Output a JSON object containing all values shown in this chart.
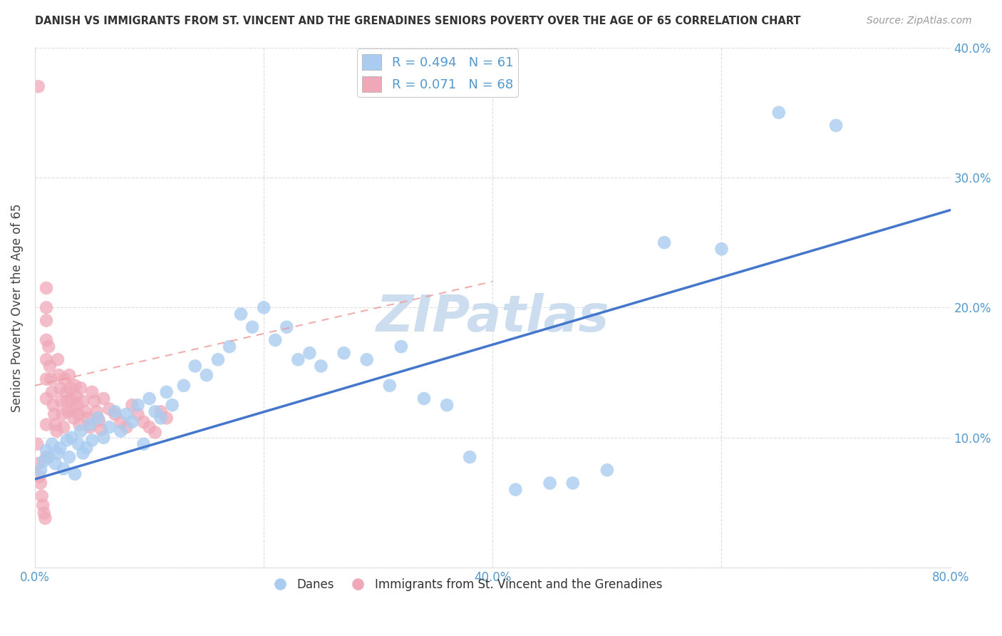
{
  "title": "DANISH VS IMMIGRANTS FROM ST. VINCENT AND THE GRENADINES SENIORS POVERTY OVER THE AGE OF 65 CORRELATION CHART",
  "source": "Source: ZipAtlas.com",
  "ylabel": "Seniors Poverty Over the Age of 65",
  "xlim": [
    0.0,
    0.8
  ],
  "ylim": [
    0.0,
    0.4
  ],
  "x_ticks": [
    0.0,
    0.2,
    0.4,
    0.6,
    0.8
  ],
  "x_tick_labels": [
    "0.0%",
    "",
    "40.0%",
    "",
    "80.0%"
  ],
  "y_ticks": [
    0.0,
    0.1,
    0.2,
    0.3,
    0.4
  ],
  "y_tick_labels_right": [
    "",
    "10.0%",
    "20.0%",
    "30.0%",
    "40.0%"
  ],
  "danish_R": 0.494,
  "danish_N": 61,
  "immigrant_R": 0.071,
  "immigrant_N": 68,
  "danish_color": "#aaccf0",
  "immigrant_color": "#f0a8b8",
  "danish_line_color": "#4477cc",
  "immigrant_line_color": "#ee9999",
  "watermark_color": "#ccddf0",
  "grid_color": "#dddddd",
  "tick_color": "#5599cc",
  "title_color": "#333333",
  "source_color": "#999999",
  "danish_x": [
    0.005,
    0.008,
    0.01,
    0.012,
    0.015,
    0.018,
    0.02,
    0.022,
    0.025,
    0.028,
    0.03,
    0.032,
    0.035,
    0.038,
    0.04,
    0.042,
    0.045,
    0.048,
    0.05,
    0.055,
    0.06,
    0.065,
    0.07,
    0.075,
    0.08,
    0.085,
    0.09,
    0.095,
    0.1,
    0.105,
    0.11,
    0.115,
    0.12,
    0.13,
    0.14,
    0.15,
    0.16,
    0.17,
    0.18,
    0.19,
    0.2,
    0.21,
    0.22,
    0.23,
    0.24,
    0.25,
    0.27,
    0.29,
    0.31,
    0.32,
    0.34,
    0.36,
    0.38,
    0.42,
    0.45,
    0.47,
    0.5,
    0.55,
    0.6,
    0.65,
    0.7
  ],
  "danish_y": [
    0.075,
    0.082,
    0.09,
    0.085,
    0.095,
    0.08,
    0.088,
    0.092,
    0.076,
    0.098,
    0.085,
    0.1,
    0.072,
    0.095,
    0.105,
    0.088,
    0.092,
    0.11,
    0.098,
    0.115,
    0.1,
    0.108,
    0.12,
    0.105,
    0.118,
    0.112,
    0.125,
    0.095,
    0.13,
    0.12,
    0.115,
    0.135,
    0.125,
    0.14,
    0.155,
    0.148,
    0.16,
    0.17,
    0.195,
    0.185,
    0.2,
    0.175,
    0.185,
    0.16,
    0.165,
    0.155,
    0.165,
    0.16,
    0.14,
    0.17,
    0.13,
    0.125,
    0.085,
    0.06,
    0.065,
    0.065,
    0.075,
    0.25,
    0.245,
    0.35,
    0.34
  ],
  "immigrant_x": [
    0.002,
    0.003,
    0.004,
    0.005,
    0.006,
    0.007,
    0.008,
    0.009,
    0.01,
    0.01,
    0.01,
    0.01,
    0.01,
    0.01,
    0.01,
    0.01,
    0.01,
    0.012,
    0.013,
    0.014,
    0.015,
    0.016,
    0.017,
    0.018,
    0.019,
    0.02,
    0.021,
    0.022,
    0.023,
    0.024,
    0.025,
    0.026,
    0.027,
    0.028,
    0.029,
    0.03,
    0.031,
    0.032,
    0.033,
    0.034,
    0.035,
    0.036,
    0.037,
    0.038,
    0.039,
    0.04,
    0.042,
    0.044,
    0.046,
    0.048,
    0.05,
    0.052,
    0.054,
    0.056,
    0.058,
    0.06,
    0.065,
    0.07,
    0.075,
    0.08,
    0.085,
    0.09,
    0.095,
    0.1,
    0.105,
    0.11,
    0.115,
    0.003
  ],
  "immigrant_y": [
    0.095,
    0.08,
    0.07,
    0.065,
    0.055,
    0.048,
    0.042,
    0.038,
    0.085,
    0.11,
    0.13,
    0.145,
    0.16,
    0.175,
    0.19,
    0.2,
    0.215,
    0.17,
    0.155,
    0.145,
    0.135,
    0.125,
    0.118,
    0.11,
    0.105,
    0.16,
    0.148,
    0.138,
    0.128,
    0.118,
    0.108,
    0.145,
    0.135,
    0.128,
    0.12,
    0.148,
    0.138,
    0.13,
    0.122,
    0.115,
    0.14,
    0.132,
    0.125,
    0.118,
    0.11,
    0.138,
    0.128,
    0.12,
    0.115,
    0.108,
    0.135,
    0.128,
    0.12,
    0.113,
    0.106,
    0.13,
    0.122,
    0.118,
    0.112,
    0.108,
    0.125,
    0.118,
    0.112,
    0.108,
    0.104,
    0.12,
    0.115,
    0.37
  ],
  "blue_line_x0": 0.0,
  "blue_line_y0": 0.068,
  "blue_line_x1": 0.8,
  "blue_line_y1": 0.275,
  "pink_line_x0": 0.0,
  "pink_line_y0": 0.14,
  "pink_line_x1": 0.4,
  "pink_line_y1": 0.22
}
